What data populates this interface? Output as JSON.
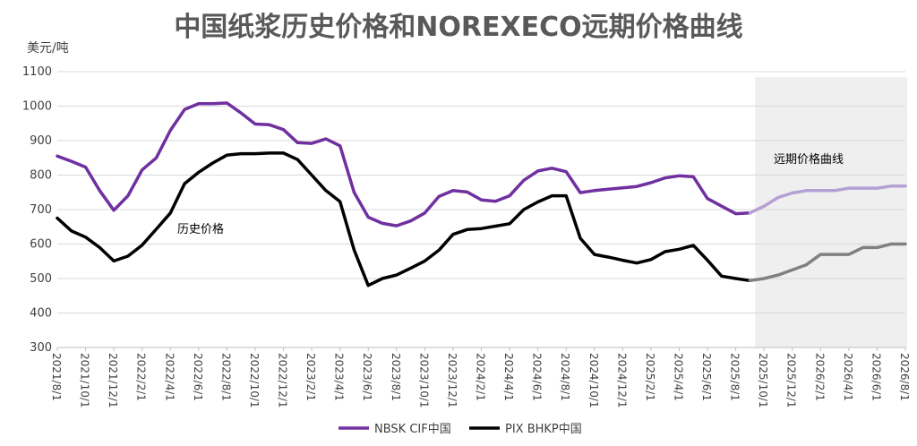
{
  "chart_data": {
    "type": "line",
    "title": "中国纸浆历史价格和NOREXECO远期价格曲线",
    "ylabel": "美元/吨",
    "ylim": [
      300,
      1100
    ],
    "yticks": [
      300,
      400,
      500,
      600,
      700,
      800,
      900,
      1000,
      1100
    ],
    "grid": "horizontal",
    "legend": "bottom",
    "x_tick_labels": [
      "2021/8/1",
      "2021/10/1",
      "2021/12/1",
      "2022/2/1",
      "2022/4/1",
      "2022/6/1",
      "2022/8/1",
      "2022/10/1",
      "2022/12/1",
      "2023/2/1",
      "2023/4/1",
      "2023/6/1",
      "2023/8/1",
      "2023/10/1",
      "2023/12/1",
      "2024/2/1",
      "2024/4/1",
      "2024/6/1",
      "2024/8/1",
      "2024/10/1",
      "2024/12/1",
      "2025/2/1",
      "2025/4/1",
      "2025/6/1",
      "2025/8/1",
      "2025/10/1",
      "2025/12/1",
      "2026/2/1",
      "2026/4/1",
      "2026/6/1",
      "2026/8/1"
    ],
    "annotations": {
      "history": "历史价格",
      "forward": "远期价格曲线"
    },
    "series": [
      {
        "name": "NBSK CIF中国",
        "color": "#7030a0",
        "forward_color": "#b4a0d4",
        "values": [
          855,
          840,
          823,
          755,
          698,
          740,
          815,
          850,
          930,
          990,
          1007,
          1007,
          1009,
          980,
          948,
          946,
          932,
          894,
          892,
          905,
          885,
          750,
          678,
          660,
          653,
          667,
          690,
          738,
          755,
          751,
          728,
          724,
          740,
          785,
          812,
          820,
          810,
          749,
          755,
          759,
          763,
          767,
          778,
          792,
          798,
          795,
          732,
          710,
          688,
          690
        ],
        "forward_values": [
          690,
          710,
          735,
          748,
          755,
          755,
          755,
          762,
          762,
          762,
          768,
          768
        ]
      },
      {
        "name": "PIX BHKP中国",
        "color": "#000000",
        "forward_color": "#808080",
        "values": [
          675,
          638,
          620,
          590,
          551,
          565,
          597,
          643,
          690,
          775,
          808,
          835,
          858,
          862,
          862,
          864,
          864,
          845,
          800,
          755,
          723,
          583,
          480,
          500,
          510,
          530,
          551,
          582,
          628,
          642,
          645,
          652,
          659,
          700,
          722,
          740,
          740,
          617,
          570,
          562,
          553,
          545,
          555,
          578,
          585,
          596,
          553,
          507,
          500,
          494
        ],
        "forward_values": [
          494,
          500,
          510,
          525,
          540,
          570,
          570,
          570,
          590,
          590,
          600,
          600
        ]
      }
    ]
  }
}
